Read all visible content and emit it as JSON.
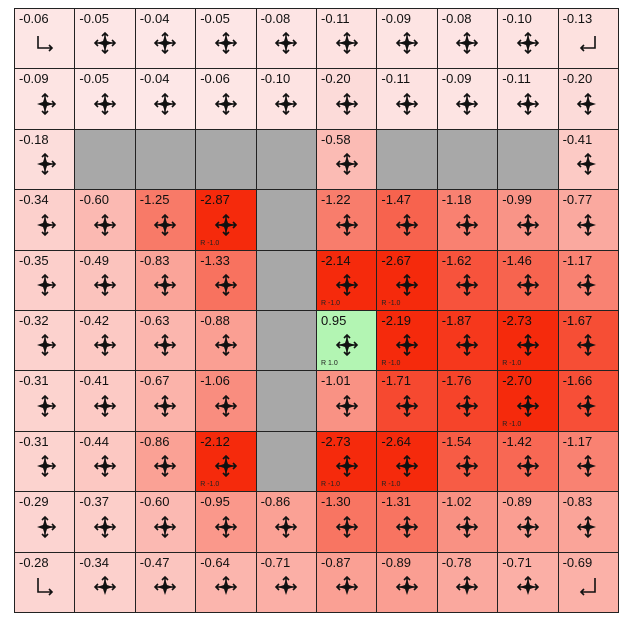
{
  "grid": {
    "rows": 10,
    "cols": 10,
    "colors": {
      "wall": "#a8a8a8",
      "positive": "#b3f5b3",
      "neg_light": "#fde9e9",
      "neg_strong": "#f52a0c"
    },
    "cells": [
      [
        {
          "value": "-0.06",
          "policy": "corner-down-right"
        },
        {
          "value": "-0.05",
          "policy": "all-arrows"
        },
        {
          "value": "-0.04",
          "policy": "all-arrows"
        },
        {
          "value": "-0.05",
          "policy": "all-arrows"
        },
        {
          "value": "-0.08",
          "policy": "all-arrows"
        },
        {
          "value": "-0.11",
          "policy": "all-arrows"
        },
        {
          "value": "-0.09",
          "policy": "all-arrows"
        },
        {
          "value": "-0.08",
          "policy": "all-arrows"
        },
        {
          "value": "-0.10",
          "policy": "all-arrows"
        },
        {
          "value": "-0.13",
          "policy": "corner-down-left"
        }
      ],
      [
        {
          "value": "-0.09",
          "policy": "all-but-left"
        },
        {
          "value": "-0.05",
          "policy": "all-arrows"
        },
        {
          "value": "-0.04",
          "policy": "all-arrows"
        },
        {
          "value": "-0.06",
          "policy": "all-arrows"
        },
        {
          "value": "-0.10",
          "policy": "all-arrows"
        },
        {
          "value": "-0.20",
          "policy": "all-arrows"
        },
        {
          "value": "-0.11",
          "policy": "all-arrows"
        },
        {
          "value": "-0.09",
          "policy": "all-arrows"
        },
        {
          "value": "-0.11",
          "policy": "all-arrows"
        },
        {
          "value": "-0.20",
          "policy": "all-but-right"
        }
      ],
      [
        {
          "value": "-0.18",
          "policy": "all-but-left"
        },
        {
          "wall": true
        },
        {
          "wall": true
        },
        {
          "wall": true
        },
        {
          "wall": true
        },
        {
          "value": "-0.58",
          "policy": "all-arrows"
        },
        {
          "wall": true
        },
        {
          "wall": true
        },
        {
          "wall": true
        },
        {
          "value": "-0.41",
          "policy": "all-but-right"
        }
      ],
      [
        {
          "value": "-0.34",
          "policy": "all-but-left"
        },
        {
          "value": "-0.60",
          "policy": "all-arrows"
        },
        {
          "value": "-1.25",
          "policy": "all-arrows"
        },
        {
          "value": "-2.87",
          "policy": "all-arrows",
          "reward": "R -1.0"
        },
        {
          "wall": true
        },
        {
          "value": "-1.22",
          "policy": "all-arrows"
        },
        {
          "value": "-1.47",
          "policy": "all-arrows"
        },
        {
          "value": "-1.18",
          "policy": "all-arrows"
        },
        {
          "value": "-0.99",
          "policy": "all-arrows"
        },
        {
          "value": "-0.77",
          "policy": "all-but-right"
        }
      ],
      [
        {
          "value": "-0.35",
          "policy": "all-but-left"
        },
        {
          "value": "-0.49",
          "policy": "all-arrows"
        },
        {
          "value": "-0.83",
          "policy": "all-arrows"
        },
        {
          "value": "-1.33",
          "policy": "all-arrows"
        },
        {
          "wall": true
        },
        {
          "value": "-2.14",
          "policy": "all-arrows",
          "reward": "R -1.0"
        },
        {
          "value": "-2.67",
          "policy": "all-arrows",
          "reward": "R -1.0"
        },
        {
          "value": "-1.62",
          "policy": "all-arrows"
        },
        {
          "value": "-1.46",
          "policy": "all-arrows"
        },
        {
          "value": "-1.17",
          "policy": "all-but-right"
        }
      ],
      [
        {
          "value": "-0.32",
          "policy": "all-but-left"
        },
        {
          "value": "-0.42",
          "policy": "all-arrows"
        },
        {
          "value": "-0.63",
          "policy": "all-arrows"
        },
        {
          "value": "-0.88",
          "policy": "all-arrows"
        },
        {
          "wall": true
        },
        {
          "value": "0.95",
          "policy": "all-arrows",
          "reward": "R 1.0",
          "positive": true
        },
        {
          "value": "-2.19",
          "policy": "all-arrows",
          "reward": "R -1.0"
        },
        {
          "value": "-1.87",
          "policy": "all-arrows"
        },
        {
          "value": "-2.73",
          "policy": "all-arrows",
          "reward": "R -1.0"
        },
        {
          "value": "-1.67",
          "policy": "all-but-right"
        }
      ],
      [
        {
          "value": "-0.31",
          "policy": "all-but-left"
        },
        {
          "value": "-0.41",
          "policy": "all-arrows"
        },
        {
          "value": "-0.67",
          "policy": "all-arrows"
        },
        {
          "value": "-1.06",
          "policy": "all-arrows"
        },
        {
          "wall": true
        },
        {
          "value": "-1.01",
          "policy": "all-arrows"
        },
        {
          "value": "-1.71",
          "policy": "all-arrows"
        },
        {
          "value": "-1.76",
          "policy": "all-arrows"
        },
        {
          "value": "-2.70",
          "policy": "all-arrows",
          "reward": "R -1.0"
        },
        {
          "value": "-1.66",
          "policy": "all-but-right"
        }
      ],
      [
        {
          "value": "-0.31",
          "policy": "all-but-left"
        },
        {
          "value": "-0.44",
          "policy": "all-arrows"
        },
        {
          "value": "-0.86",
          "policy": "all-arrows"
        },
        {
          "value": "-2.12",
          "policy": "all-arrows",
          "reward": "R -1.0"
        },
        {
          "wall": true
        },
        {
          "value": "-2.73",
          "policy": "all-arrows",
          "reward": "R -1.0"
        },
        {
          "value": "-2.64",
          "policy": "all-arrows",
          "reward": "R -1.0"
        },
        {
          "value": "-1.54",
          "policy": "all-arrows"
        },
        {
          "value": "-1.42",
          "policy": "all-arrows"
        },
        {
          "value": "-1.17",
          "policy": "all-but-right"
        }
      ],
      [
        {
          "value": "-0.29",
          "policy": "all-but-left"
        },
        {
          "value": "-0.37",
          "policy": "all-arrows"
        },
        {
          "value": "-0.60",
          "policy": "all-arrows"
        },
        {
          "value": "-0.95",
          "policy": "all-arrows"
        },
        {
          "value": "-0.86",
          "policy": "all-arrows"
        },
        {
          "value": "-1.30",
          "policy": "all-arrows"
        },
        {
          "value": "-1.31",
          "policy": "all-arrows"
        },
        {
          "value": "-1.02",
          "policy": "all-arrows"
        },
        {
          "value": "-0.89",
          "policy": "all-arrows"
        },
        {
          "value": "-0.83",
          "policy": "all-but-right"
        }
      ],
      [
        {
          "value": "-0.28",
          "policy": "corner-up-right"
        },
        {
          "value": "-0.34",
          "policy": "all-but-down"
        },
        {
          "value": "-0.47",
          "policy": "all-but-down"
        },
        {
          "value": "-0.64",
          "policy": "all-but-down"
        },
        {
          "value": "-0.71",
          "policy": "all-but-down"
        },
        {
          "value": "-0.87",
          "policy": "all-but-down"
        },
        {
          "value": "-0.89",
          "policy": "all-but-down"
        },
        {
          "value": "-0.78",
          "policy": "all-but-down"
        },
        {
          "value": "-0.71",
          "policy": "all-but-down"
        },
        {
          "value": "-0.69",
          "policy": "corner-up-left"
        }
      ]
    ]
  }
}
